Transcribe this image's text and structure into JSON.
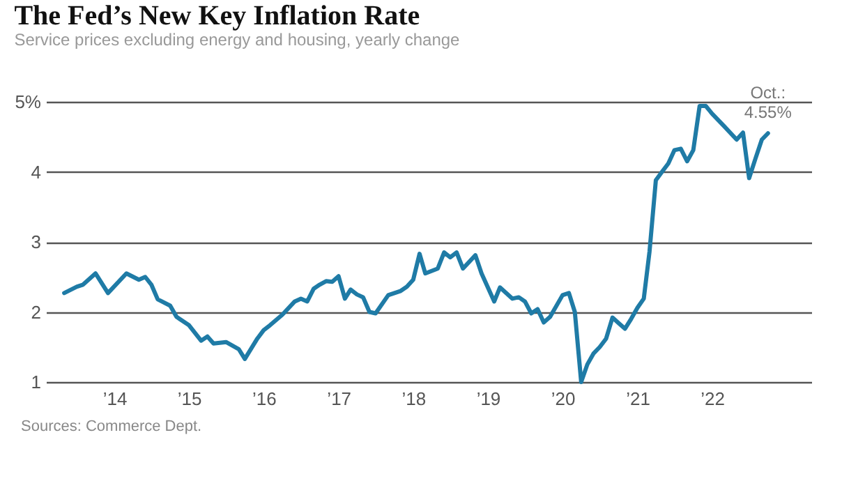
{
  "chart_data": {
    "type": "line",
    "title": "The Fed’s New Key Inflation Rate",
    "subtitle": "Service prices excluding energy and housing, yearly change",
    "x": [
      "2013-05",
      "2013-07",
      "2013-08",
      "2013-10",
      "2013-12",
      "2014-03",
      "2014-05",
      "2014-06",
      "2014-07",
      "2014-08",
      "2014-10",
      "2014-11",
      "2015-01",
      "2015-03",
      "2015-04",
      "2015-05",
      "2015-07",
      "2015-09",
      "2015-10",
      "2015-12",
      "2016-01",
      "2016-02",
      "2016-04",
      "2016-06",
      "2016-07",
      "2016-08",
      "2016-09",
      "2016-10",
      "2016-11",
      "2016-12",
      "2017-01",
      "2017-02",
      "2017-03",
      "2017-04",
      "2017-05",
      "2017-06",
      "2017-07",
      "2017-09",
      "2017-11",
      "2017-12",
      "2018-01",
      "2018-02",
      "2018-03",
      "2018-05",
      "2018-06",
      "2018-07",
      "2018-08",
      "2018-09",
      "2018-11",
      "2018-12",
      "2019-02",
      "2019-03",
      "2019-05",
      "2019-06",
      "2019-07",
      "2019-08",
      "2019-09",
      "2019-10",
      "2019-11",
      "2020-01",
      "2020-02",
      "2020-03",
      "2020-04",
      "2020-05",
      "2020-06",
      "2020-07",
      "2020-08",
      "2020-09",
      "2020-10",
      "2020-11",
      "2020-12",
      "2021-01",
      "2021-02",
      "2021-03",
      "2021-04",
      "2021-05",
      "2021-06",
      "2021-07",
      "2021-08",
      "2021-09",
      "2021-10",
      "2021-11",
      "2021-12",
      "2022-01",
      "2022-03",
      "2022-05",
      "2022-06",
      "2022-07",
      "2022-08",
      "2022-09",
      "2022-10"
    ],
    "series": [
      {
        "color": "#1f7ba6",
        "values": [
          2.27,
          2.36,
          2.39,
          2.55,
          2.27,
          2.55,
          2.46,
          2.5,
          2.39,
          2.18,
          2.09,
          1.93,
          1.81,
          1.59,
          1.65,
          1.55,
          1.57,
          1.47,
          1.33,
          1.62,
          1.74,
          1.81,
          1.96,
          2.15,
          2.19,
          2.15,
          2.33,
          2.39,
          2.44,
          2.43,
          2.51,
          2.19,
          2.32,
          2.25,
          2.21,
          2.0,
          1.98,
          2.24,
          2.3,
          2.36,
          2.46,
          2.83,
          2.55,
          2.62,
          2.85,
          2.78,
          2.85,
          2.62,
          2.81,
          2.55,
          2.15,
          2.35,
          2.19,
          2.21,
          2.15,
          1.98,
          2.04,
          1.85,
          1.93,
          2.24,
          2.27,
          2.0,
          1.0,
          1.25,
          1.41,
          1.5,
          1.62,
          1.92,
          1.84,
          1.76,
          1.9,
          2.06,
          2.19,
          2.86,
          3.88,
          4.0,
          4.12,
          4.31,
          4.33,
          4.15,
          4.31,
          4.94,
          4.94,
          4.83,
          4.65,
          4.46,
          4.56,
          3.91,
          4.19,
          4.46,
          4.55
        ]
      }
    ],
    "xlim": [
      "2013-02",
      "2023-05"
    ],
    "xticks": [
      {
        "value": "2014-01",
        "label": "’14"
      },
      {
        "value": "2015-01",
        "label": "’15"
      },
      {
        "value": "2016-01",
        "label": "’16"
      },
      {
        "value": "2017-01",
        "label": "’17"
      },
      {
        "value": "2018-01",
        "label": "’18"
      },
      {
        "value": "2019-01",
        "label": "’19"
      },
      {
        "value": "2020-01",
        "label": "’20"
      },
      {
        "value": "2021-01",
        "label": "’21"
      },
      {
        "value": "2022-01",
        "label": "’22"
      }
    ],
    "ylim": [
      1,
      5
    ],
    "yticks": [
      1,
      2,
      3,
      4,
      {
        "value": 5,
        "label": "5%"
      }
    ],
    "grid": "y",
    "annotations": [
      {
        "text": "Oct.: 4.55%",
        "x": "2022-10",
        "y": 4.55
      },
      "Sources: Commerce Dept."
    ]
  }
}
